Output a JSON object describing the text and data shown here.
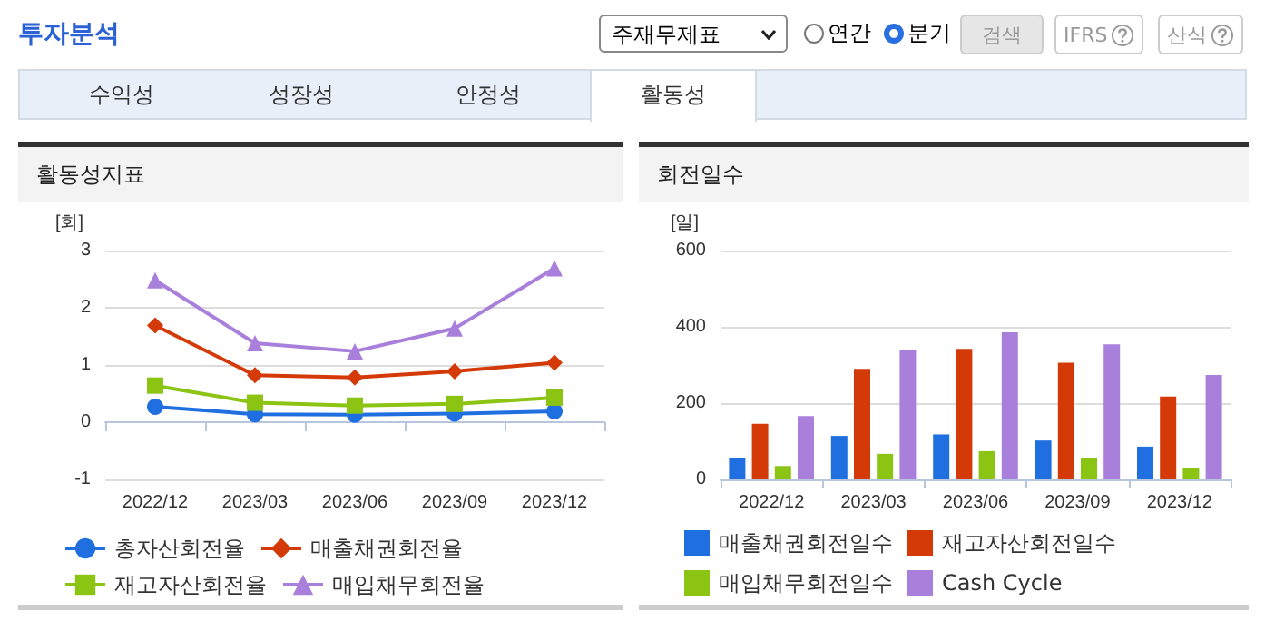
{
  "chart_data": [
    {
      "type": "line",
      "title": "활동성지표",
      "ylabel": "[회]",
      "annotations": [
        "투자분석",
        "주재무제표",
        "연간",
        "분기",
        "검색",
        "IFRS",
        "산식",
        "수익성",
        "성장성",
        "안정성",
        "활동성"
      ],
      "categories": [
        "2022/12",
        "2023/03",
        "2023/06",
        "2023/09",
        "2023/12"
      ],
      "series": [
        {
          "name": "총자산회전율",
          "color": "#1f6fe0",
          "marker": "circle",
          "values": [
            0.27,
            0.14,
            0.13,
            0.15,
            0.19
          ]
        },
        {
          "name": "매출채권회전율",
          "color": "#d43a08",
          "marker": "diamond",
          "values": [
            1.69,
            0.82,
            0.78,
            0.89,
            1.04
          ]
        },
        {
          "name": "재고자산회전율",
          "color": "#8cc414",
          "marker": "square",
          "values": [
            0.64,
            0.34,
            0.29,
            0.32,
            0.43
          ]
        },
        {
          "name": "매입채무회전율",
          "color": "#a97fdc",
          "marker": "triangle",
          "values": [
            2.48,
            1.38,
            1.24,
            1.64,
            2.69
          ]
        }
      ],
      "ylim": [
        -1,
        3
      ],
      "yticks": [
        -1,
        0,
        1,
        2,
        3
      ],
      "grid": "y",
      "legend": "bottom"
    },
    {
      "type": "bar",
      "title": "회전일수",
      "ylabel": "[일]",
      "categories": [
        "2022/12",
        "2023/03",
        "2023/06",
        "2023/09",
        "2023/12"
      ],
      "series": [
        {
          "name": "매출채권회전일수",
          "color": "#1f6fe0",
          "values": [
            55,
            114,
            118,
            102,
            86
          ]
        },
        {
          "name": "재고자산회전일수",
          "color": "#d43a08",
          "values": [
            146,
            290,
            342,
            306,
            217
          ]
        },
        {
          "name": "매입채무회전일수",
          "color": "#8cc414",
          "values": [
            35,
            67,
            74,
            55,
            29
          ]
        },
        {
          "name": "Cash Cycle",
          "color": "#a97fdc",
          "values": [
            166,
            338,
            386,
            354,
            274
          ]
        }
      ],
      "ylim": [
        0,
        600
      ],
      "yticks": [
        0,
        200,
        400,
        600
      ],
      "grid": "y",
      "legend": "bottom"
    }
  ]
}
